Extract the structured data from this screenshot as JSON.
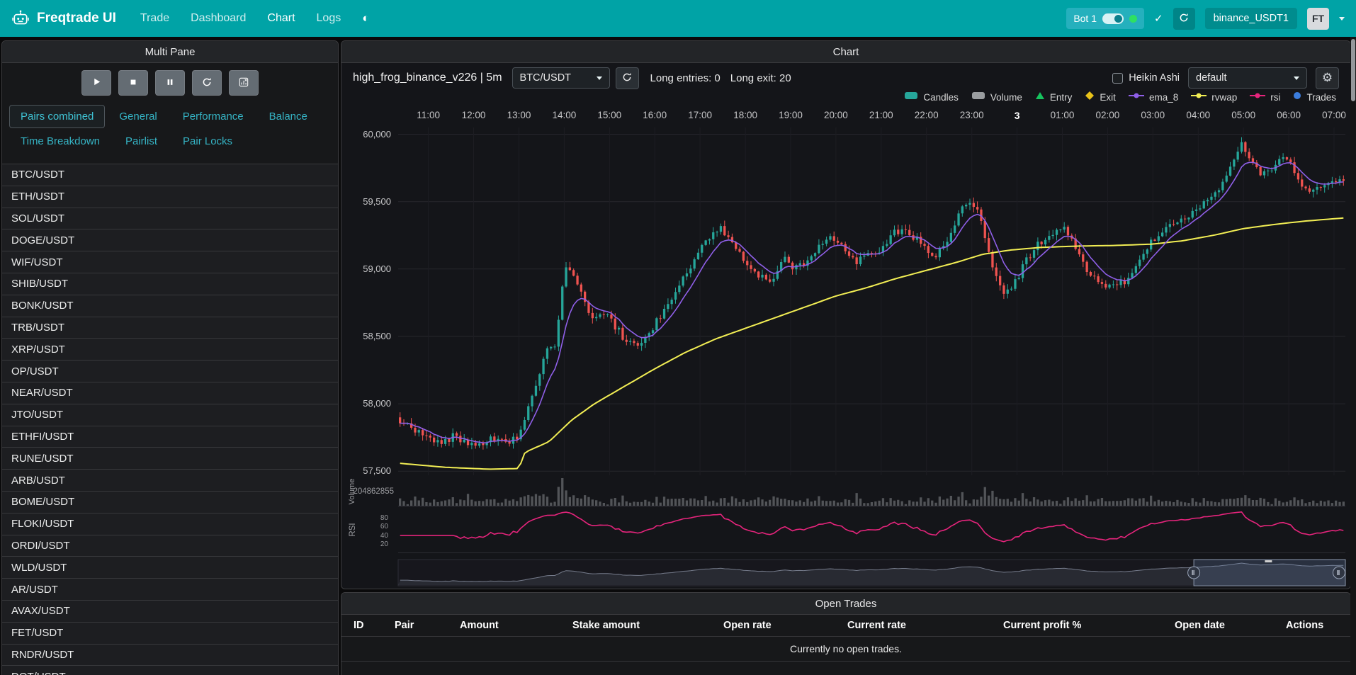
{
  "navbar": {
    "brand": "Freqtrade UI",
    "links": [
      {
        "label": "Trade"
      },
      {
        "label": "Dashboard"
      },
      {
        "label": "Chart",
        "active": true
      },
      {
        "label": "Logs"
      }
    ],
    "bot_label": "Bot 1",
    "bot_name": "binance_USDT1",
    "avatar": "FT",
    "colors": {
      "navbar": "#00a3a6",
      "bot_pill": "#25b0bd",
      "online_dot": "#2ee062"
    }
  },
  "left_panel": {
    "title": "Multi Pane",
    "controls": [
      {
        "icon": "play",
        "name": "start-bot-button"
      },
      {
        "icon": "stop",
        "name": "stop-bot-button"
      },
      {
        "icon": "pause",
        "name": "pause-bot-button"
      },
      {
        "icon": "refresh",
        "name": "reload-config-button"
      },
      {
        "icon": "chart-x",
        "name": "chart-settings-button"
      }
    ],
    "tabs": [
      {
        "label": "Pairs combined",
        "active": true
      },
      {
        "label": "General"
      },
      {
        "label": "Performance"
      },
      {
        "label": "Balance"
      },
      {
        "label": "Time Breakdown"
      },
      {
        "label": "Pairlist"
      },
      {
        "label": "Pair Locks"
      }
    ],
    "pairs": [
      "BTC/USDT",
      "ETH/USDT",
      "SOL/USDT",
      "DOGE/USDT",
      "WIF/USDT",
      "SHIB/USDT",
      "BONK/USDT",
      "TRB/USDT",
      "XRP/USDT",
      "OP/USDT",
      "NEAR/USDT",
      "JTO/USDT",
      "ETHFI/USDT",
      "RUNE/USDT",
      "ARB/USDT",
      "BOME/USDT",
      "FLOKI/USDT",
      "ORDI/USDT",
      "WLD/USDT",
      "AR/USDT",
      "AVAX/USDT",
      "FET/USDT",
      "RNDR/USDT",
      "DOT/USDT"
    ]
  },
  "chart_panel": {
    "title": "Chart",
    "strategy_label": "high_frog_binance_v226 | 5m",
    "pair_select": "BTC/USDT",
    "long_entries_label": "Long entries: 0",
    "long_exit_label": "Long exit: 20",
    "heikin_ashi_label": "Heikin Ashi",
    "plot_config_select": "default",
    "volume_pane_label": "Volume",
    "rsi_pane_label": "RSI",
    "legend": [
      {
        "label": "Candles",
        "type": "candles",
        "color": "#26a69a"
      },
      {
        "label": "Volume",
        "type": "bar",
        "color": "#9a9da0"
      },
      {
        "label": "Entry",
        "type": "triangle",
        "color": "#16c35e"
      },
      {
        "label": "Exit",
        "type": "diamond",
        "color": "#e8c219"
      },
      {
        "label": "ema_8",
        "type": "line",
        "color": "#8f5fe8"
      },
      {
        "label": "rvwap",
        "type": "line",
        "color": "#f2ee54"
      },
      {
        "label": "rsi",
        "type": "line",
        "color": "#e6247c"
      },
      {
        "label": "Trades",
        "type": "circle",
        "color": "#3b7ddd"
      }
    ],
    "chart_data": {
      "type": "candlestick",
      "pair": "BTC/USDT",
      "timeframe": "5m",
      "minutes_per_candle": 5,
      "num_candles": 251,
      "first_tick_offset_min": 40,
      "tick_interval_min": 60,
      "x_axis_labels": [
        "11:00",
        "12:00",
        "13:00",
        "14:00",
        "15:00",
        "16:00",
        "17:00",
        "18:00",
        "19:00",
        "20:00",
        "21:00",
        "22:00",
        "23:00",
        "3",
        "01:00",
        "02:00",
        "03:00",
        "04:00",
        "05:00",
        "06:00",
        "07:00"
      ],
      "x_axis_bold_label": "3",
      "y_axis_ticks": [
        60000,
        59500,
        59000,
        58500,
        58000,
        57500
      ],
      "y_axis_tick_labels": [
        "60,000",
        "59,500",
        "59,000",
        "58,500",
        "58,000",
        "57,500"
      ],
      "price_range": [
        57470,
        60050
      ],
      "volume_axis_label": "204862855",
      "rsi_axis_ticks": [
        80,
        60,
        40,
        20
      ],
      "ema_period": 8,
      "rsi_period": 14,
      "zoom_window_pct": [
        84,
        100
      ],
      "colors": {
        "up": "#26a69a",
        "down": "#ef5350",
        "ema_8": "#8f5fe8",
        "rvwap": "#f2ee54",
        "rsi": "#e6247c",
        "volume": "#85888c"
      },
      "price_waypoints": [
        [
          0,
          57900
        ],
        [
          15,
          57840
        ],
        [
          40,
          57760
        ],
        [
          60,
          57700
        ],
        [
          75,
          57760
        ],
        [
          95,
          57700
        ],
        [
          110,
          57680
        ],
        [
          125,
          57760
        ],
        [
          140,
          57720
        ],
        [
          160,
          57740
        ],
        [
          170,
          57900
        ],
        [
          185,
          58150
        ],
        [
          200,
          58420
        ],
        [
          212,
          58450
        ],
        [
          222,
          58980
        ],
        [
          232,
          59020
        ],
        [
          245,
          58820
        ],
        [
          260,
          58640
        ],
        [
          275,
          58680
        ],
        [
          292,
          58560
        ],
        [
          305,
          58460
        ],
        [
          320,
          58430
        ],
        [
          340,
          58570
        ],
        [
          360,
          58740
        ],
        [
          380,
          58920
        ],
        [
          400,
          59120
        ],
        [
          420,
          59260
        ],
        [
          432,
          59300
        ],
        [
          448,
          59170
        ],
        [
          465,
          59050
        ],
        [
          482,
          58950
        ],
        [
          495,
          58900
        ],
        [
          512,
          59080
        ],
        [
          528,
          59000
        ],
        [
          545,
          59050
        ],
        [
          560,
          59180
        ],
        [
          578,
          59240
        ],
        [
          595,
          59150
        ],
        [
          610,
          59050
        ],
        [
          628,
          59120
        ],
        [
          645,
          59160
        ],
        [
          662,
          59280
        ],
        [
          680,
          59260
        ],
        [
          698,
          59180
        ],
        [
          715,
          59100
        ],
        [
          732,
          59240
        ],
        [
          750,
          59450
        ],
        [
          762,
          59500
        ],
        [
          772,
          59400
        ],
        [
          788,
          59050
        ],
        [
          802,
          58820
        ],
        [
          815,
          58840
        ],
        [
          832,
          59040
        ],
        [
          850,
          59180
        ],
        [
          868,
          59260
        ],
        [
          882,
          59310
        ],
        [
          900,
          59170
        ],
        [
          915,
          58980
        ],
        [
          932,
          58900
        ],
        [
          950,
          58860
        ],
        [
          968,
          58920
        ],
        [
          985,
          59080
        ],
        [
          1002,
          59220
        ],
        [
          1020,
          59320
        ],
        [
          1040,
          59360
        ],
        [
          1058,
          59420
        ],
        [
          1075,
          59500
        ],
        [
          1092,
          59580
        ],
        [
          1108,
          59800
        ],
        [
          1120,
          59940
        ],
        [
          1132,
          59820
        ],
        [
          1145,
          59720
        ],
        [
          1158,
          59700
        ],
        [
          1172,
          59820
        ],
        [
          1185,
          59780
        ],
        [
          1198,
          59640
        ],
        [
          1212,
          59580
        ],
        [
          1228,
          59630
        ],
        [
          1242,
          59660
        ],
        [
          1255,
          59640
        ]
      ],
      "rvwap_waypoints": [
        [
          0,
          57560
        ],
        [
          60,
          57530
        ],
        [
          120,
          57515
        ],
        [
          160,
          57520
        ],
        [
          168,
          57640
        ],
        [
          200,
          57720
        ],
        [
          230,
          57880
        ],
        [
          260,
          58000
        ],
        [
          300,
          58130
        ],
        [
          340,
          58260
        ],
        [
          380,
          58380
        ],
        [
          420,
          58480
        ],
        [
          460,
          58560
        ],
        [
          500,
          58640
        ],
        [
          540,
          58720
        ],
        [
          580,
          58800
        ],
        [
          620,
          58860
        ],
        [
          660,
          58930
        ],
        [
          700,
          58990
        ],
        [
          740,
          59050
        ],
        [
          775,
          59110
        ],
        [
          810,
          59140
        ],
        [
          850,
          59160
        ],
        [
          900,
          59170
        ],
        [
          950,
          59175
        ],
        [
          1000,
          59185
        ],
        [
          1040,
          59210
        ],
        [
          1080,
          59250
        ],
        [
          1120,
          59300
        ],
        [
          1160,
          59330
        ],
        [
          1200,
          59355
        ],
        [
          1255,
          59380
        ]
      ]
    }
  },
  "open_trades": {
    "title": "Open Trades",
    "columns": [
      "ID",
      "Pair",
      "Amount",
      "Stake amount",
      "Open rate",
      "Current rate",
      "Current profit %",
      "Open date",
      "Actions"
    ],
    "empty_text": "Currently no open trades."
  }
}
